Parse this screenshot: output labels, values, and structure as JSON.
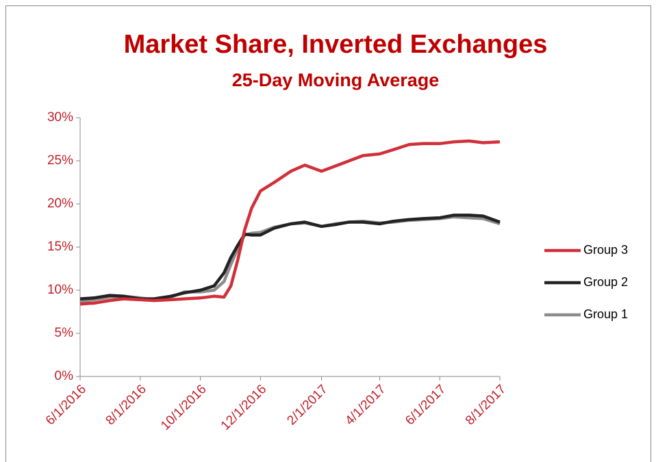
{
  "chart_data": {
    "type": "line",
    "title": "Market Share, Inverted Exchanges",
    "subtitle": "25-Day Moving Average",
    "x": [
      "6/1/2016",
      "6/15/2016",
      "7/1/2016",
      "7/15/2016",
      "8/1/2016",
      "8/15/2016",
      "9/1/2016",
      "9/15/2016",
      "10/1/2016",
      "10/15/2016",
      "10/25/2016",
      "11/1/2016",
      "11/8/2016",
      "11/15/2016",
      "11/22/2016",
      "12/1/2016",
      "12/15/2016",
      "1/1/2017",
      "1/15/2017",
      "2/1/2017",
      "2/15/2017",
      "3/1/2017",
      "3/15/2017",
      "4/1/2017",
      "4/15/2017",
      "5/1/2017",
      "5/15/2017",
      "6/1/2017",
      "6/15/2017",
      "7/1/2017",
      "7/15/2017",
      "8/1/2017"
    ],
    "series": [
      {
        "name": "Group 3",
        "color": "#d12f3a",
        "values": [
          8.4,
          8.5,
          8.8,
          9.0,
          8.9,
          8.8,
          8.9,
          9.0,
          9.1,
          9.3,
          9.2,
          10.5,
          13.5,
          17.0,
          19.5,
          21.5,
          22.5,
          23.8,
          24.5,
          23.8,
          24.4,
          25.0,
          25.6,
          25.8,
          26.3,
          26.9,
          27.0,
          27.0,
          27.2,
          27.3,
          27.1,
          27.2
        ]
      },
      {
        "name": "Group 2",
        "color": "#222222",
        "values": [
          9.0,
          9.1,
          9.4,
          9.3,
          9.0,
          9.0,
          9.3,
          9.7,
          10.0,
          10.5,
          12.0,
          13.8,
          15.2,
          16.5,
          16.4,
          16.4,
          17.2,
          17.7,
          17.9,
          17.4,
          17.6,
          17.9,
          17.9,
          17.7,
          18.0,
          18.2,
          18.3,
          18.4,
          18.7,
          18.7,
          18.6,
          17.9
        ]
      },
      {
        "name": "Group 1",
        "color": "#8c8c8c",
        "values": [
          8.7,
          8.9,
          9.2,
          9.3,
          9.1,
          8.9,
          9.2,
          9.8,
          9.8,
          10.0,
          11.0,
          13.0,
          14.8,
          16.4,
          16.6,
          16.7,
          17.3,
          17.7,
          17.8,
          17.4,
          17.7,
          17.9,
          18.0,
          17.8,
          17.9,
          18.1,
          18.2,
          18.3,
          18.5,
          18.4,
          18.3,
          17.7
        ]
      }
    ],
    "xlim": [
      "6/1/2016",
      "8/1/2017"
    ],
    "xticks": [
      "6/1/2016",
      "8/1/2016",
      "10/1/2016",
      "12/1/2016",
      "2/1/2017",
      "4/1/2017",
      "6/1/2017",
      "8/1/2017"
    ],
    "ylim": [
      0,
      30
    ],
    "yticks": [
      {
        "value": 0,
        "label": "0%"
      },
      {
        "value": 5,
        "label": "5%"
      },
      {
        "value": 10,
        "label": "10%"
      },
      {
        "value": 15,
        "label": "15%"
      },
      {
        "value": 20,
        "label": "20%"
      },
      {
        "value": 25,
        "label": "25%"
      },
      {
        "value": 30,
        "label": "30%"
      }
    ],
    "legend": "right"
  }
}
